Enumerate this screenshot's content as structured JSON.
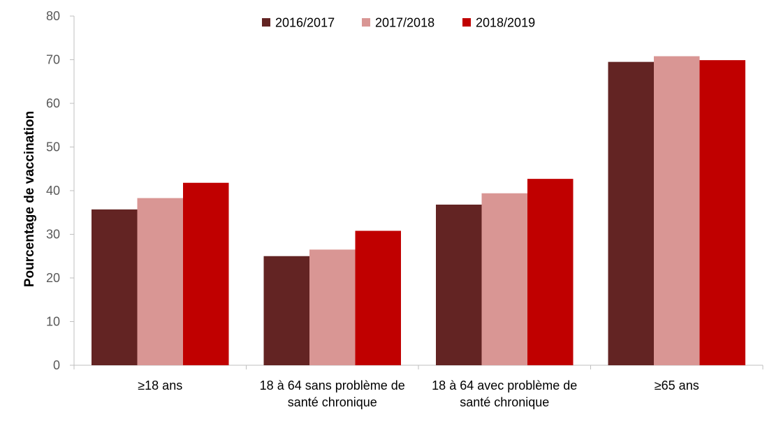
{
  "chart_data": {
    "type": "bar",
    "title": "",
    "xlabel": "",
    "ylabel": "Pourcentage de vaccination",
    "ylim": [
      0,
      80
    ],
    "yticks": [
      0,
      10,
      20,
      30,
      40,
      50,
      60,
      70,
      80
    ],
    "grid": false,
    "legend_position": "top-center",
    "categories": [
      [
        "≥18 ans"
      ],
      [
        "18 à 64 sans problème de",
        "santé chronique"
      ],
      [
        "18 à 64 avec problème de",
        "santé chronique"
      ],
      [
        "≥65 ans"
      ]
    ],
    "series": [
      {
        "name": "2016/2017",
        "color": "#632423",
        "values": [
          35.7,
          25.0,
          36.8,
          69.5
        ]
      },
      {
        "name": "2017/2018",
        "color": "#D99694",
        "values": [
          38.3,
          26.5,
          39.4,
          70.8
        ]
      },
      {
        "name": "2018/2019",
        "color": "#C00000",
        "values": [
          41.8,
          30.8,
          42.7,
          69.9
        ]
      }
    ]
  }
}
